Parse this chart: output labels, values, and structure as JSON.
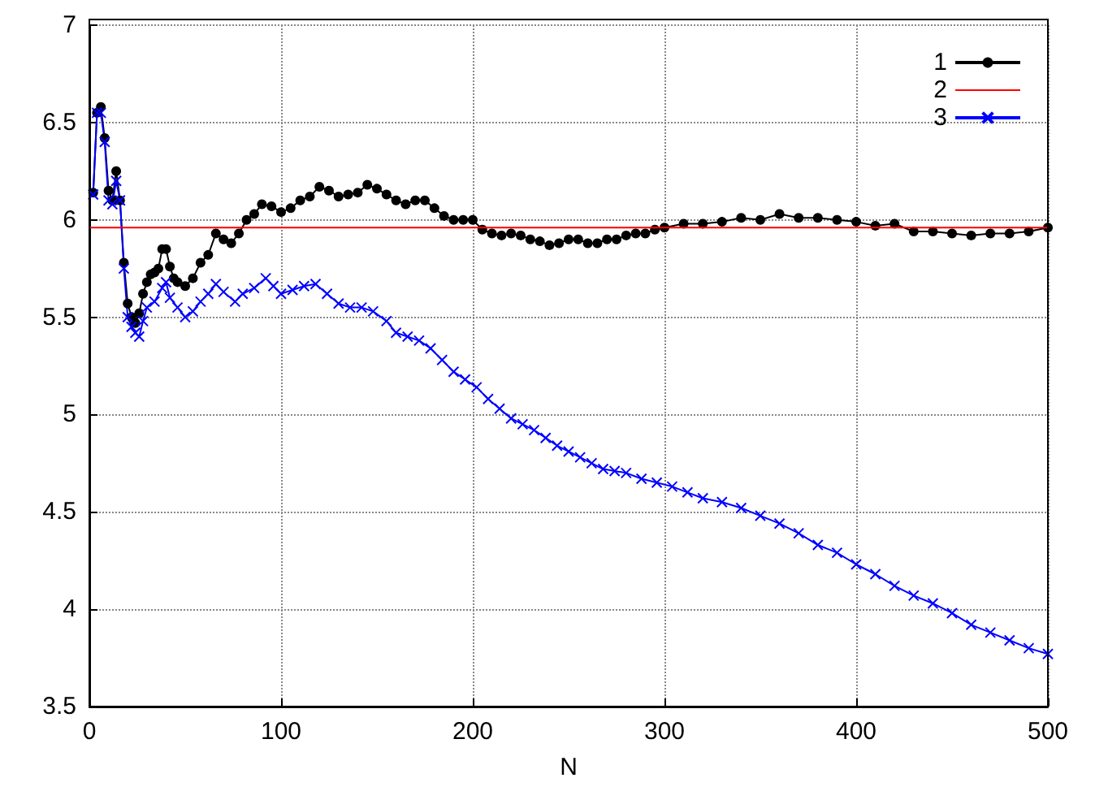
{
  "chart_data": {
    "type": "line",
    "xlabel": "N",
    "xlim": [
      0,
      500
    ],
    "xticks": [
      0,
      100,
      200,
      300,
      400,
      500
    ],
    "ylim": [
      3.5,
      7
    ],
    "yticks": [
      3.5,
      4,
      4.5,
      5,
      5.5,
      6,
      6.5,
      7
    ],
    "grid": true,
    "legend": "top right",
    "series": [
      {
        "name": "1",
        "color": "#000000",
        "marker": "circle",
        "x": [
          2,
          4,
          6,
          8,
          10,
          12,
          14,
          16,
          18,
          20,
          22,
          24,
          26,
          28,
          30,
          32,
          34,
          36,
          38,
          40,
          42,
          44,
          46,
          50,
          54,
          58,
          62,
          66,
          70,
          74,
          78,
          82,
          86,
          90,
          95,
          100,
          105,
          110,
          115,
          120,
          125,
          130,
          135,
          140,
          145,
          150,
          155,
          160,
          165,
          170,
          175,
          180,
          185,
          190,
          195,
          200,
          205,
          210,
          215,
          220,
          225,
          230,
          235,
          240,
          245,
          250,
          255,
          260,
          265,
          270,
          275,
          280,
          285,
          290,
          295,
          300,
          310,
          320,
          330,
          340,
          350,
          360,
          370,
          380,
          390,
          400,
          410,
          420,
          430,
          440,
          450,
          460,
          470,
          480,
          490,
          500
        ],
        "values": [
          6.14,
          6.55,
          6.58,
          6.42,
          6.15,
          6.1,
          6.25,
          6.1,
          5.78,
          5.57,
          5.5,
          5.47,
          5.52,
          5.62,
          5.68,
          5.72,
          5.73,
          5.75,
          5.85,
          5.85,
          5.76,
          5.7,
          5.68,
          5.66,
          5.7,
          5.78,
          5.82,
          5.93,
          5.9,
          5.88,
          5.93,
          6.0,
          6.03,
          6.08,
          6.07,
          6.04,
          6.06,
          6.1,
          6.12,
          6.17,
          6.15,
          6.12,
          6.13,
          6.14,
          6.18,
          6.16,
          6.13,
          6.1,
          6.08,
          6.1,
          6.1,
          6.06,
          6.02,
          6.0,
          6.0,
          6.0,
          5.95,
          5.93,
          5.92,
          5.93,
          5.92,
          5.9,
          5.89,
          5.87,
          5.88,
          5.9,
          5.9,
          5.88,
          5.88,
          5.9,
          5.9,
          5.92,
          5.93,
          5.93,
          5.95,
          5.96,
          5.98,
          5.98,
          5.99,
          6.01,
          6.0,
          6.03,
          6.01,
          6.01,
          6.0,
          5.99,
          5.97,
          5.98,
          5.94,
          5.94,
          5.93,
          5.92,
          5.93,
          5.93,
          5.94,
          5.96
        ]
      },
      {
        "name": "2",
        "color": "#ff0000",
        "marker": "none",
        "x": [
          0,
          500
        ],
        "values": [
          5.96,
          5.96
        ]
      },
      {
        "name": "3",
        "color": "#0000ff",
        "marker": "cross",
        "x": [
          2,
          4,
          6,
          8,
          10,
          12,
          14,
          16,
          18,
          20,
          22,
          24,
          26,
          28,
          30,
          34,
          38,
          40,
          42,
          46,
          50,
          54,
          58,
          62,
          66,
          70,
          76,
          80,
          86,
          92,
          96,
          100,
          106,
          112,
          118,
          124,
          130,
          136,
          142,
          148,
          155,
          160,
          166,
          172,
          178,
          184,
          190,
          196,
          202,
          208,
          214,
          220,
          226,
          232,
          238,
          244,
          250,
          256,
          262,
          268,
          274,
          280,
          288,
          296,
          304,
          312,
          320,
          330,
          340,
          350,
          360,
          370,
          380,
          390,
          400,
          410,
          420,
          430,
          440,
          450,
          460,
          470,
          480,
          490,
          500
        ],
        "values": [
          6.13,
          6.55,
          6.55,
          6.4,
          6.1,
          6.08,
          6.2,
          6.1,
          5.75,
          5.5,
          5.45,
          5.42,
          5.4,
          5.48,
          5.55,
          5.58,
          5.65,
          5.68,
          5.6,
          5.55,
          5.5,
          5.53,
          5.58,
          5.62,
          5.67,
          5.63,
          5.58,
          5.62,
          5.65,
          5.7,
          5.66,
          5.62,
          5.64,
          5.66,
          5.67,
          5.62,
          5.57,
          5.55,
          5.55,
          5.53,
          5.48,
          5.42,
          5.4,
          5.38,
          5.34,
          5.28,
          5.22,
          5.18,
          5.14,
          5.08,
          5.03,
          4.98,
          4.95,
          4.92,
          4.88,
          4.84,
          4.81,
          4.78,
          4.75,
          4.72,
          4.71,
          4.7,
          4.67,
          4.65,
          4.63,
          4.6,
          4.57,
          4.55,
          4.52,
          4.48,
          4.44,
          4.39,
          4.33,
          4.29,
          4.23,
          4.18,
          4.12,
          4.07,
          4.03,
          3.98,
          3.92,
          3.88,
          3.84,
          3.8,
          3.77
        ]
      }
    ]
  }
}
